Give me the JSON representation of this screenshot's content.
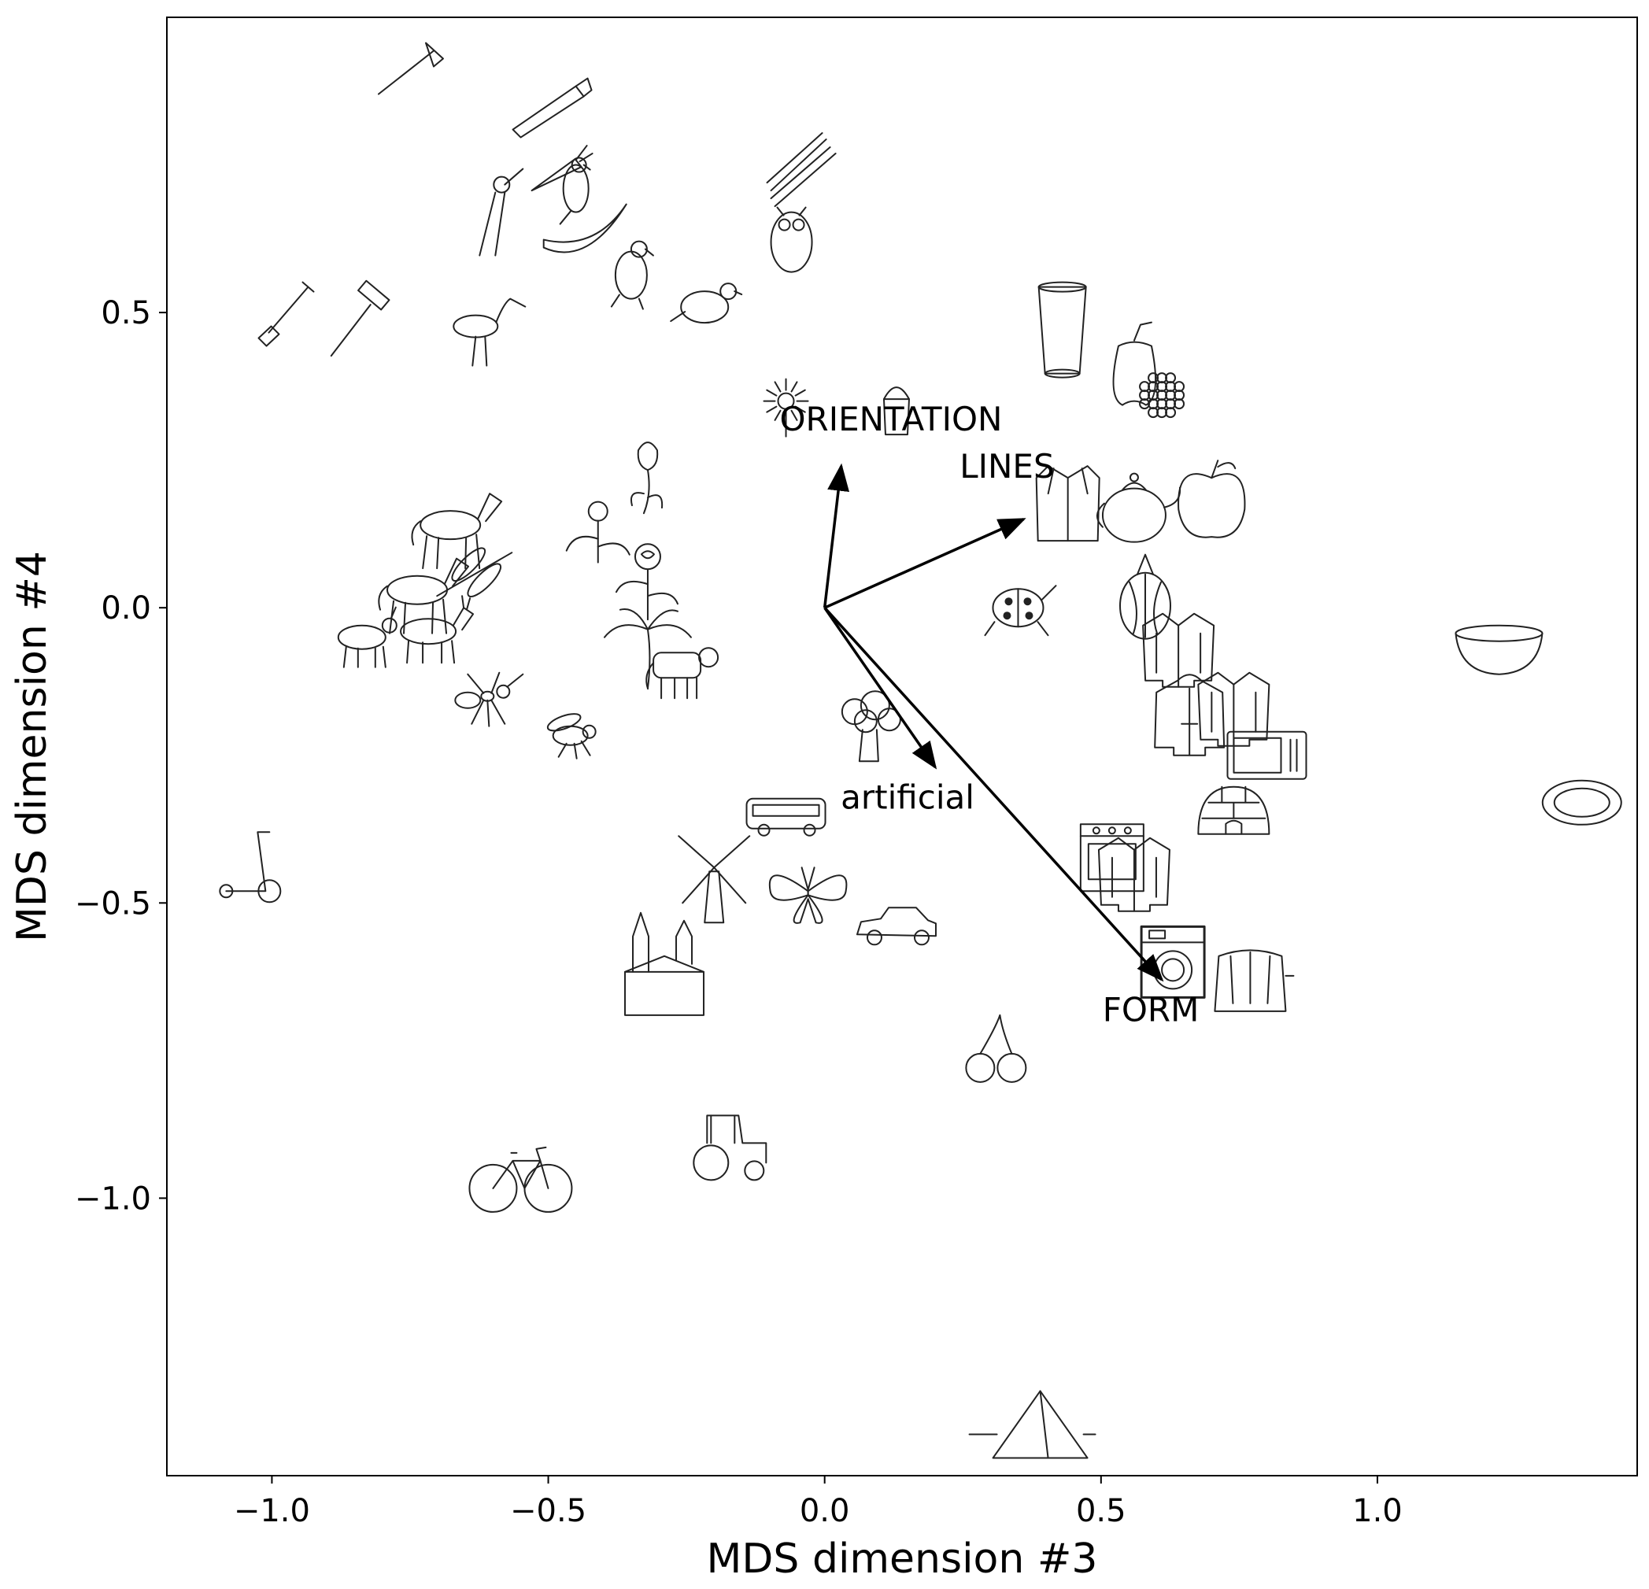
{
  "chart_data": {
    "type": "scatter",
    "title": "",
    "xlabel": "MDS dimension #3",
    "ylabel": "MDS dimension #4",
    "xlim": [
      -1.19,
      1.47
    ],
    "ylim": [
      -1.47,
      1.0
    ],
    "xticks": [
      -1.0,
      -0.5,
      0.0,
      0.5,
      1.0
    ],
    "xtick_labels": [
      "−1.0",
      "−0.5",
      "0.0",
      "0.5",
      "1.0"
    ],
    "yticks": [
      0.5,
      0.0,
      -0.5,
      -1.0
    ],
    "ytick_labels": [
      "0.5",
      "0.0",
      "−0.5",
      "−1.0"
    ],
    "grid": false,
    "vectors": [
      {
        "label": "ORIENTATION",
        "x": 0.03,
        "y": 0.24,
        "label_x": 0.12,
        "label_y": 0.3
      },
      {
        "label": "LINES",
        "x": 0.36,
        "y": 0.15,
        "label_x": 0.33,
        "label_y": 0.22
      },
      {
        "label": "artificial",
        "x": 0.2,
        "y": -0.27,
        "label_x": 0.15,
        "label_y": -0.34
      },
      {
        "label": "FORM",
        "x": 0.61,
        "y": -0.63,
        "label_x": 0.59,
        "label_y": -0.7
      }
    ],
    "points": [
      {
        "icon": "axe-icon",
        "x": -0.75,
        "y": 0.91
      },
      {
        "icon": "saw-icon",
        "x": -0.5,
        "y": 0.85
      },
      {
        "icon": "carrot-icon",
        "x": -0.48,
        "y": 0.74
      },
      {
        "icon": "parrot-icon",
        "x": -0.45,
        "y": 0.71
      },
      {
        "icon": "pliers-icon",
        "x": -0.61,
        "y": 0.67
      },
      {
        "icon": "banana-icon",
        "x": -0.43,
        "y": 0.63
      },
      {
        "icon": "eagle-icon",
        "x": -0.35,
        "y": 0.57
      },
      {
        "icon": "asparagus-icon",
        "x": -0.04,
        "y": 0.74
      },
      {
        "icon": "owl-icon",
        "x": -0.06,
        "y": 0.63
      },
      {
        "icon": "pigeon-icon",
        "x": -0.21,
        "y": 0.52
      },
      {
        "icon": "shovel-icon",
        "x": -0.97,
        "y": 0.49
      },
      {
        "icon": "hammer-icon",
        "x": -0.85,
        "y": 0.48
      },
      {
        "icon": "stork-icon",
        "x": -0.62,
        "y": 0.47
      },
      {
        "icon": "sunflower-icon",
        "x": -0.07,
        "y": 0.35
      },
      {
        "icon": "salt-shaker-icon",
        "x": 0.13,
        "y": 0.34
      },
      {
        "icon": "tulip-icon",
        "x": -0.32,
        "y": 0.22
      },
      {
        "icon": "dandelion-icon",
        "x": -0.41,
        "y": 0.13
      },
      {
        "icon": "horse-icon",
        "x": -0.67,
        "y": 0.14
      },
      {
        "icon": "dragonfly-icon",
        "x": -0.63,
        "y": 0.06
      },
      {
        "icon": "horse-icon",
        "x": -0.73,
        "y": 0.03
      },
      {
        "icon": "goat-icon",
        "x": -0.83,
        "y": -0.05
      },
      {
        "icon": "donkey-icon",
        "x": -0.71,
        "y": -0.04
      },
      {
        "icon": "rose-icon",
        "x": -0.32,
        "y": 0.04
      },
      {
        "icon": "palm-tree-icon",
        "x": -0.32,
        "y": -0.07
      },
      {
        "icon": "cow-icon",
        "x": -0.26,
        "y": -0.1
      },
      {
        "icon": "ant-icon",
        "x": -0.61,
        "y": -0.15
      },
      {
        "icon": "fly-icon",
        "x": -0.46,
        "y": -0.21
      },
      {
        "icon": "scooter-icon",
        "x": -1.04,
        "y": -0.44
      },
      {
        "icon": "ladybug-icon",
        "x": 0.35,
        "y": 0.0
      },
      {
        "icon": "broccoli-icon",
        "x": 0.08,
        "y": -0.2
      },
      {
        "icon": "bus-icon",
        "x": -0.07,
        "y": -0.35
      },
      {
        "icon": "windmill-icon",
        "x": -0.2,
        "y": -0.46
      },
      {
        "icon": "butterfly-icon",
        "x": -0.03,
        "y": -0.48
      },
      {
        "icon": "car-icon",
        "x": 0.13,
        "y": -0.54
      },
      {
        "icon": "church-icon",
        "x": -0.29,
        "y": -0.63
      },
      {
        "icon": "cherries-icon",
        "x": 0.31,
        "y": -0.75
      },
      {
        "icon": "tractor-icon",
        "x": -0.17,
        "y": -0.92
      },
      {
        "icon": "bicycle-icon",
        "x": -0.55,
        "y": -0.97
      },
      {
        "icon": "pyramid-icon",
        "x": 0.39,
        "y": -1.38
      },
      {
        "icon": "glass-icon",
        "x": 0.43,
        "y": 0.47
      },
      {
        "icon": "pepper-icon",
        "x": 0.56,
        "y": 0.41
      },
      {
        "icon": "raspberry-icon",
        "x": 0.61,
        "y": 0.36
      },
      {
        "icon": "coat-icon",
        "x": 0.44,
        "y": 0.18
      },
      {
        "icon": "teapot-icon",
        "x": 0.56,
        "y": 0.17
      },
      {
        "icon": "apple-icon",
        "x": 0.7,
        "y": 0.18
      },
      {
        "icon": "onion-icon",
        "x": 0.58,
        "y": 0.01
      },
      {
        "icon": "jacket-icon",
        "x": 0.64,
        "y": -0.07
      },
      {
        "icon": "hoodie-icon",
        "x": 0.66,
        "y": -0.19
      },
      {
        "icon": "jacket-icon",
        "x": 0.74,
        "y": -0.17
      },
      {
        "icon": "microwave-icon",
        "x": 0.8,
        "y": -0.25
      },
      {
        "icon": "igloo-icon",
        "x": 0.74,
        "y": -0.35
      },
      {
        "icon": "stove-icon",
        "x": 0.52,
        "y": -0.42
      },
      {
        "icon": "jacket-icon",
        "x": 0.56,
        "y": -0.45
      },
      {
        "icon": "washing-machine-icon",
        "x": 0.63,
        "y": -0.6
      },
      {
        "icon": "toaster-icon",
        "x": 0.77,
        "y": -0.63
      },
      {
        "icon": "bowl-icon",
        "x": 1.22,
        "y": -0.07
      },
      {
        "icon": "plate-icon",
        "x": 1.37,
        "y": -0.33
      }
    ]
  }
}
